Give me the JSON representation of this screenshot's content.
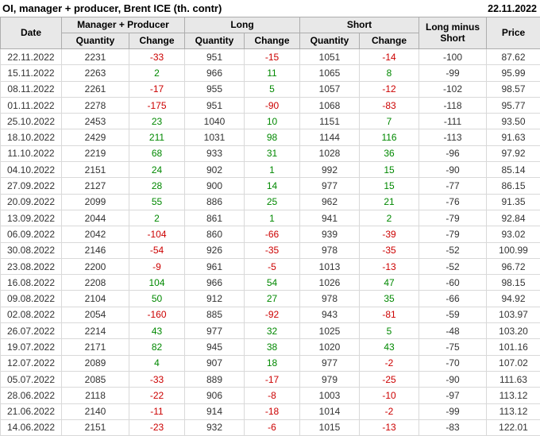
{
  "chart_data": {
    "type": "table",
    "title": "OI, manager + producer, Brent ICE (th. contr)",
    "report_date": "22.11.2022",
    "columns": {
      "date": "Date",
      "manager_producer": "Manager + Producer",
      "long": "Long",
      "short": "Short",
      "quantity": "Quantity",
      "change": "Change",
      "long_minus_short": "Long minus Short",
      "price": "Price"
    },
    "rows": [
      {
        "date": "22.11.2022",
        "mp_qty": 2231,
        "mp_chg": -33,
        "long_qty": 951,
        "long_chg": -15,
        "short_qty": 1051,
        "short_chg": -14,
        "lms": -100,
        "price": "87.62",
        "month_start": false
      },
      {
        "date": "15.11.2022",
        "mp_qty": 2263,
        "mp_chg": 2,
        "long_qty": 966,
        "long_chg": 11,
        "short_qty": 1065,
        "short_chg": 8,
        "lms": -99,
        "price": "95.99",
        "month_start": false
      },
      {
        "date": "08.11.2022",
        "mp_qty": 2261,
        "mp_chg": -17,
        "long_qty": 955,
        "long_chg": 5,
        "short_qty": 1057,
        "short_chg": -12,
        "lms": -102,
        "price": "98.57",
        "month_start": false
      },
      {
        "date": "01.11.2022",
        "mp_qty": 2278,
        "mp_chg": -175,
        "long_qty": 951,
        "long_chg": -90,
        "short_qty": 1068,
        "short_chg": -83,
        "lms": -118,
        "price": "95.77",
        "month_start": false
      },
      {
        "date": "25.10.2022",
        "mp_qty": 2453,
        "mp_chg": 23,
        "long_qty": 1040,
        "long_chg": 10,
        "short_qty": 1151,
        "short_chg": 7,
        "lms": -111,
        "price": "93.50",
        "month_start": true
      },
      {
        "date": "18.10.2022",
        "mp_qty": 2429,
        "mp_chg": 211,
        "long_qty": 1031,
        "long_chg": 98,
        "short_qty": 1144,
        "short_chg": 116,
        "lms": -113,
        "price": "91.63",
        "month_start": false
      },
      {
        "date": "11.10.2022",
        "mp_qty": 2219,
        "mp_chg": 68,
        "long_qty": 933,
        "long_chg": 31,
        "short_qty": 1028,
        "short_chg": 36,
        "lms": -96,
        "price": "97.92",
        "month_start": false
      },
      {
        "date": "04.10.2022",
        "mp_qty": 2151,
        "mp_chg": 24,
        "long_qty": 902,
        "long_chg": 1,
        "short_qty": 992,
        "short_chg": 15,
        "lms": -90,
        "price": "85.14",
        "month_start": false
      },
      {
        "date": "27.09.2022",
        "mp_qty": 2127,
        "mp_chg": 28,
        "long_qty": 900,
        "long_chg": 14,
        "short_qty": 977,
        "short_chg": 15,
        "lms": -77,
        "price": "86.15",
        "month_start": true
      },
      {
        "date": "20.09.2022",
        "mp_qty": 2099,
        "mp_chg": 55,
        "long_qty": 886,
        "long_chg": 25,
        "short_qty": 962,
        "short_chg": 21,
        "lms": -76,
        "price": "91.35",
        "month_start": false
      },
      {
        "date": "13.09.2022",
        "mp_qty": 2044,
        "mp_chg": 2,
        "long_qty": 861,
        "long_chg": 1,
        "short_qty": 941,
        "short_chg": 2,
        "lms": -79,
        "price": "92.84",
        "month_start": false
      },
      {
        "date": "06.09.2022",
        "mp_qty": 2042,
        "mp_chg": -104,
        "long_qty": 860,
        "long_chg": -66,
        "short_qty": 939,
        "short_chg": -39,
        "lms": -79,
        "price": "93.02",
        "month_start": false
      },
      {
        "date": "30.08.2022",
        "mp_qty": 2146,
        "mp_chg": -54,
        "long_qty": 926,
        "long_chg": -35,
        "short_qty": 978,
        "short_chg": -35,
        "lms": -52,
        "price": "100.99",
        "month_start": true
      },
      {
        "date": "23.08.2022",
        "mp_qty": 2200,
        "mp_chg": -9,
        "long_qty": 961,
        "long_chg": -5,
        "short_qty": 1013,
        "short_chg": -13,
        "lms": -52,
        "price": "96.72",
        "month_start": false
      },
      {
        "date": "16.08.2022",
        "mp_qty": 2208,
        "mp_chg": 104,
        "long_qty": 966,
        "long_chg": 54,
        "short_qty": 1026,
        "short_chg": 47,
        "lms": -60,
        "price": "98.15",
        "month_start": false
      },
      {
        "date": "09.08.2022",
        "mp_qty": 2104,
        "mp_chg": 50,
        "long_qty": 912,
        "long_chg": 27,
        "short_qty": 978,
        "short_chg": 35,
        "lms": -66,
        "price": "94.92",
        "month_start": false
      },
      {
        "date": "02.08.2022",
        "mp_qty": 2054,
        "mp_chg": -160,
        "long_qty": 885,
        "long_chg": -92,
        "short_qty": 943,
        "short_chg": -81,
        "lms": -59,
        "price": "103.97",
        "month_start": false
      },
      {
        "date": "26.07.2022",
        "mp_qty": 2214,
        "mp_chg": 43,
        "long_qty": 977,
        "long_chg": 32,
        "short_qty": 1025,
        "short_chg": 5,
        "lms": -48,
        "price": "103.20",
        "month_start": true
      },
      {
        "date": "19.07.2022",
        "mp_qty": 2171,
        "mp_chg": 82,
        "long_qty": 945,
        "long_chg": 38,
        "short_qty": 1020,
        "short_chg": 43,
        "lms": -75,
        "price": "101.16",
        "month_start": false
      },
      {
        "date": "12.07.2022",
        "mp_qty": 2089,
        "mp_chg": 4,
        "long_qty": 907,
        "long_chg": 18,
        "short_qty": 977,
        "short_chg": -2,
        "lms": -70,
        "price": "107.02",
        "month_start": false
      },
      {
        "date": "05.07.2022",
        "mp_qty": 2085,
        "mp_chg": -33,
        "long_qty": 889,
        "long_chg": -17,
        "short_qty": 979,
        "short_chg": -25,
        "lms": -90,
        "price": "111.63",
        "month_start": false
      },
      {
        "date": "28.06.2022",
        "mp_qty": 2118,
        "mp_chg": -22,
        "long_qty": 906,
        "long_chg": -8,
        "short_qty": 1003,
        "short_chg": -10,
        "lms": -97,
        "price": "113.12",
        "month_start": true
      },
      {
        "date": "21.06.2022",
        "mp_qty": 2140,
        "mp_chg": -11,
        "long_qty": 914,
        "long_chg": -18,
        "short_qty": 1014,
        "short_chg": -2,
        "lms": -99,
        "price": "113.12",
        "month_start": false
      },
      {
        "date": "14.06.2022",
        "mp_qty": 2151,
        "mp_chg": -23,
        "long_qty": 932,
        "long_chg": -6,
        "short_qty": 1015,
        "short_chg": -13,
        "lms": -83,
        "price": "122.01",
        "month_start": false
      }
    ]
  },
  "colors": {
    "positive": "#008800",
    "negative": "#cc0000",
    "header_bg": "#e8e8e8",
    "text": "#333333"
  }
}
